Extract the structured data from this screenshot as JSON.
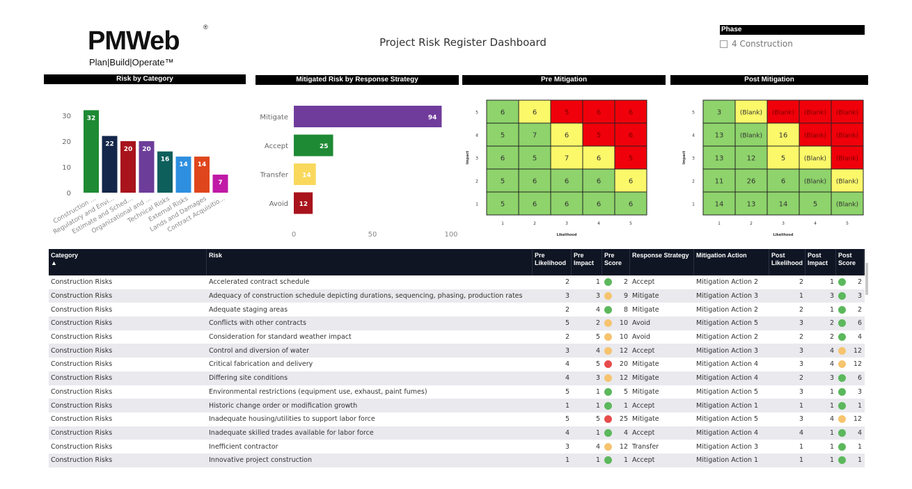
{
  "logo": {
    "brand": "PMWeb",
    "registered": "®",
    "tagline": "Plan|Build|Operate™"
  },
  "dashboard_title": "Project Risk Register Dashboard",
  "phase_filter": {
    "header": "Phase",
    "option": "4 Construction"
  },
  "panels": {
    "risk_by_category": "Risk by Category",
    "mitigated": "Mitigated Risk by Response Strategy",
    "pre": "Pre Mitigation",
    "post": "Post Mitigation"
  },
  "chart_data": [
    {
      "type": "bar",
      "title": "Risk by Category",
      "categories": [
        "Construction ...",
        "Regulatory and Envi...",
        "Estimate and Sched...",
        "Organizational and ...",
        "Technical Risks",
        "External Risks",
        "Lands and Damages",
        "Contract Acquisitio..."
      ],
      "values": [
        32,
        22,
        20,
        20,
        16,
        14,
        14,
        7
      ],
      "colors": [
        "#1e8a34",
        "#14264a",
        "#a8131c",
        "#6c3d99",
        "#0d5f5c",
        "#2e8fe0",
        "#e0461c",
        "#c01aa6"
      ],
      "y_ticks": [
        0,
        10,
        20,
        30
      ],
      "ylim": [
        0,
        34
      ]
    },
    {
      "type": "bar",
      "orientation": "horizontal",
      "title": "Mitigated Risk by Response Strategy",
      "categories": [
        "Mitigate",
        "Accept",
        "Transfer",
        "Avoid"
      ],
      "values": [
        94,
        25,
        14,
        12
      ],
      "colors": [
        "#703c9b",
        "#1e8a34",
        "#f9d85c",
        "#a8131c"
      ],
      "x_ticks": [
        0,
        50,
        100
      ],
      "xlim": [
        0,
        100
      ]
    },
    {
      "type": "heatmap",
      "title": "Pre Mitigation",
      "xlabel": "Likelihood",
      "ylabel": "Impact",
      "x_ticks": [
        "1",
        "2",
        "3",
        "4",
        "5"
      ],
      "y_ticks": [
        "5",
        "4",
        "3",
        "2",
        "1"
      ],
      "cells": [
        [
          "6",
          "6",
          "5",
          "6",
          "6"
        ],
        [
          "5",
          "7",
          "6",
          "5",
          "6"
        ],
        [
          "6",
          "5",
          "7",
          "6",
          "5"
        ],
        [
          "5",
          "6",
          "6",
          "6",
          "6"
        ],
        [
          "5",
          "6",
          "6",
          "6",
          "6"
        ]
      ],
      "cell_colors": [
        [
          "g",
          "y",
          "r",
          "r",
          "r"
        ],
        [
          "g",
          "g",
          "y",
          "r",
          "r"
        ],
        [
          "g",
          "g",
          "y",
          "y",
          "r"
        ],
        [
          "g",
          "g",
          "g",
          "g",
          "y"
        ],
        [
          "g",
          "g",
          "g",
          "g",
          "g"
        ]
      ]
    },
    {
      "type": "heatmap",
      "title": "Post Mitigation",
      "xlabel": "Likelihood",
      "ylabel": "Impact",
      "x_ticks": [
        "1",
        "2",
        "3",
        "4",
        "5"
      ],
      "y_ticks": [
        "5",
        "4",
        "3",
        "2",
        "1"
      ],
      "cells": [
        [
          "3",
          "(Blank)",
          "(Blank)",
          "(Blank)",
          "(Blank)"
        ],
        [
          "13",
          "(Blank)",
          "16",
          "(Blank)",
          "(Blank)"
        ],
        [
          "13",
          "12",
          "5",
          "(Blank)",
          "(Blank)"
        ],
        [
          "11",
          "26",
          "6",
          "(Blank)",
          "(Blank)"
        ],
        [
          "14",
          "13",
          "14",
          "5",
          "(Blank)"
        ]
      ],
      "cell_colors": [
        [
          "g",
          "y",
          "r",
          "r",
          "r"
        ],
        [
          "g",
          "g",
          "y",
          "r",
          "r"
        ],
        [
          "g",
          "g",
          "y",
          "y",
          "r"
        ],
        [
          "g",
          "g",
          "g",
          "g",
          "y"
        ],
        [
          "g",
          "g",
          "g",
          "g",
          "g"
        ]
      ]
    }
  ],
  "heat_colors": {
    "g": "#8ed36b",
    "y": "#fbf86a",
    "r": "#f0000a"
  },
  "score_colors": {
    "green": "#5cb85c",
    "amber": "#f6c46f",
    "red": "#e74c4c"
  },
  "table": {
    "headers": {
      "category": "Category",
      "risk": "Risk",
      "pre_likelihood": "Pre Likelihood",
      "pre_impact": "Pre Impact",
      "pre_score": "Pre Score",
      "response": "Response Strategy",
      "mitigation": "Mitigation Action",
      "post_likelihood": "Post Likelihood",
      "post_impact": "Post Impact",
      "post_score": "Post Score"
    },
    "sort_indicator": "▲",
    "rows": [
      [
        "Construction Risks",
        "Accelerated contract schedule",
        "2",
        "1",
        "green",
        "2",
        "Accept",
        "Mitigation Action 2",
        "2",
        "1",
        "green",
        "2"
      ],
      [
        "Construction Risks",
        "Adequacy of construction schedule depicting durations, sequencing, phasing, production rates",
        "3",
        "3",
        "amber",
        "9",
        "Mitigate",
        "Mitigation Action 3",
        "1",
        "3",
        "green",
        "3"
      ],
      [
        "Construction Risks",
        "Adequate staging areas",
        "2",
        "4",
        "green",
        "8",
        "Mitigate",
        "Mitigation Action 2",
        "2",
        "1",
        "green",
        "2"
      ],
      [
        "Construction Risks",
        "Conflicts with other contracts",
        "5",
        "2",
        "amber",
        "10",
        "Avoid",
        "Mitigation Action 5",
        "3",
        "2",
        "green",
        "6"
      ],
      [
        "Construction Risks",
        "Consideration for standard weather impact",
        "2",
        "5",
        "amber",
        "10",
        "Avoid",
        "Mitigation Action 2",
        "2",
        "2",
        "green",
        "4"
      ],
      [
        "Construction Risks",
        "Control and diversion of water",
        "3",
        "4",
        "amber",
        "12",
        "Accept",
        "Mitigation Action 3",
        "3",
        "4",
        "amber",
        "12"
      ],
      [
        "Construction Risks",
        "Critical fabrication and delivery",
        "4",
        "5",
        "red",
        "20",
        "Mitigate",
        "Mitigation Action 4",
        "3",
        "4",
        "amber",
        "12"
      ],
      [
        "Construction Risks",
        "Differing site conditions",
        "4",
        "3",
        "amber",
        "12",
        "Mitigate",
        "Mitigation Action 4",
        "2",
        "3",
        "green",
        "6"
      ],
      [
        "Construction Risks",
        "Environmental restrictions (equipment use, exhaust, paint fumes)",
        "5",
        "1",
        "green",
        "5",
        "Mitigate",
        "Mitigation Action 5",
        "3",
        "1",
        "green",
        "3"
      ],
      [
        "Construction Risks",
        "Historic change order or modification growth",
        "1",
        "1",
        "green",
        "1",
        "Accept",
        "Mitigation Action 1",
        "1",
        "1",
        "green",
        "1"
      ],
      [
        "Construction Risks",
        "Inadequate housing/utilities to support labor force",
        "5",
        "5",
        "red",
        "25",
        "Mitigate",
        "Mitigation Action 5",
        "3",
        "4",
        "amber",
        "12"
      ],
      [
        "Construction Risks",
        "Inadequate skilled trades available for labor force",
        "4",
        "1",
        "green",
        "4",
        "Accept",
        "Mitigation Action 4",
        "4",
        "1",
        "green",
        "4"
      ],
      [
        "Construction Risks",
        "Inefficient contractor",
        "3",
        "4",
        "amber",
        "12",
        "Transfer",
        "Mitigation Action 3",
        "1",
        "1",
        "green",
        "1"
      ],
      [
        "Construction Risks",
        "Innovative project construction",
        "1",
        "1",
        "green",
        "1",
        "Accept",
        "Mitigation Action 1",
        "1",
        "1",
        "green",
        "1"
      ]
    ]
  }
}
